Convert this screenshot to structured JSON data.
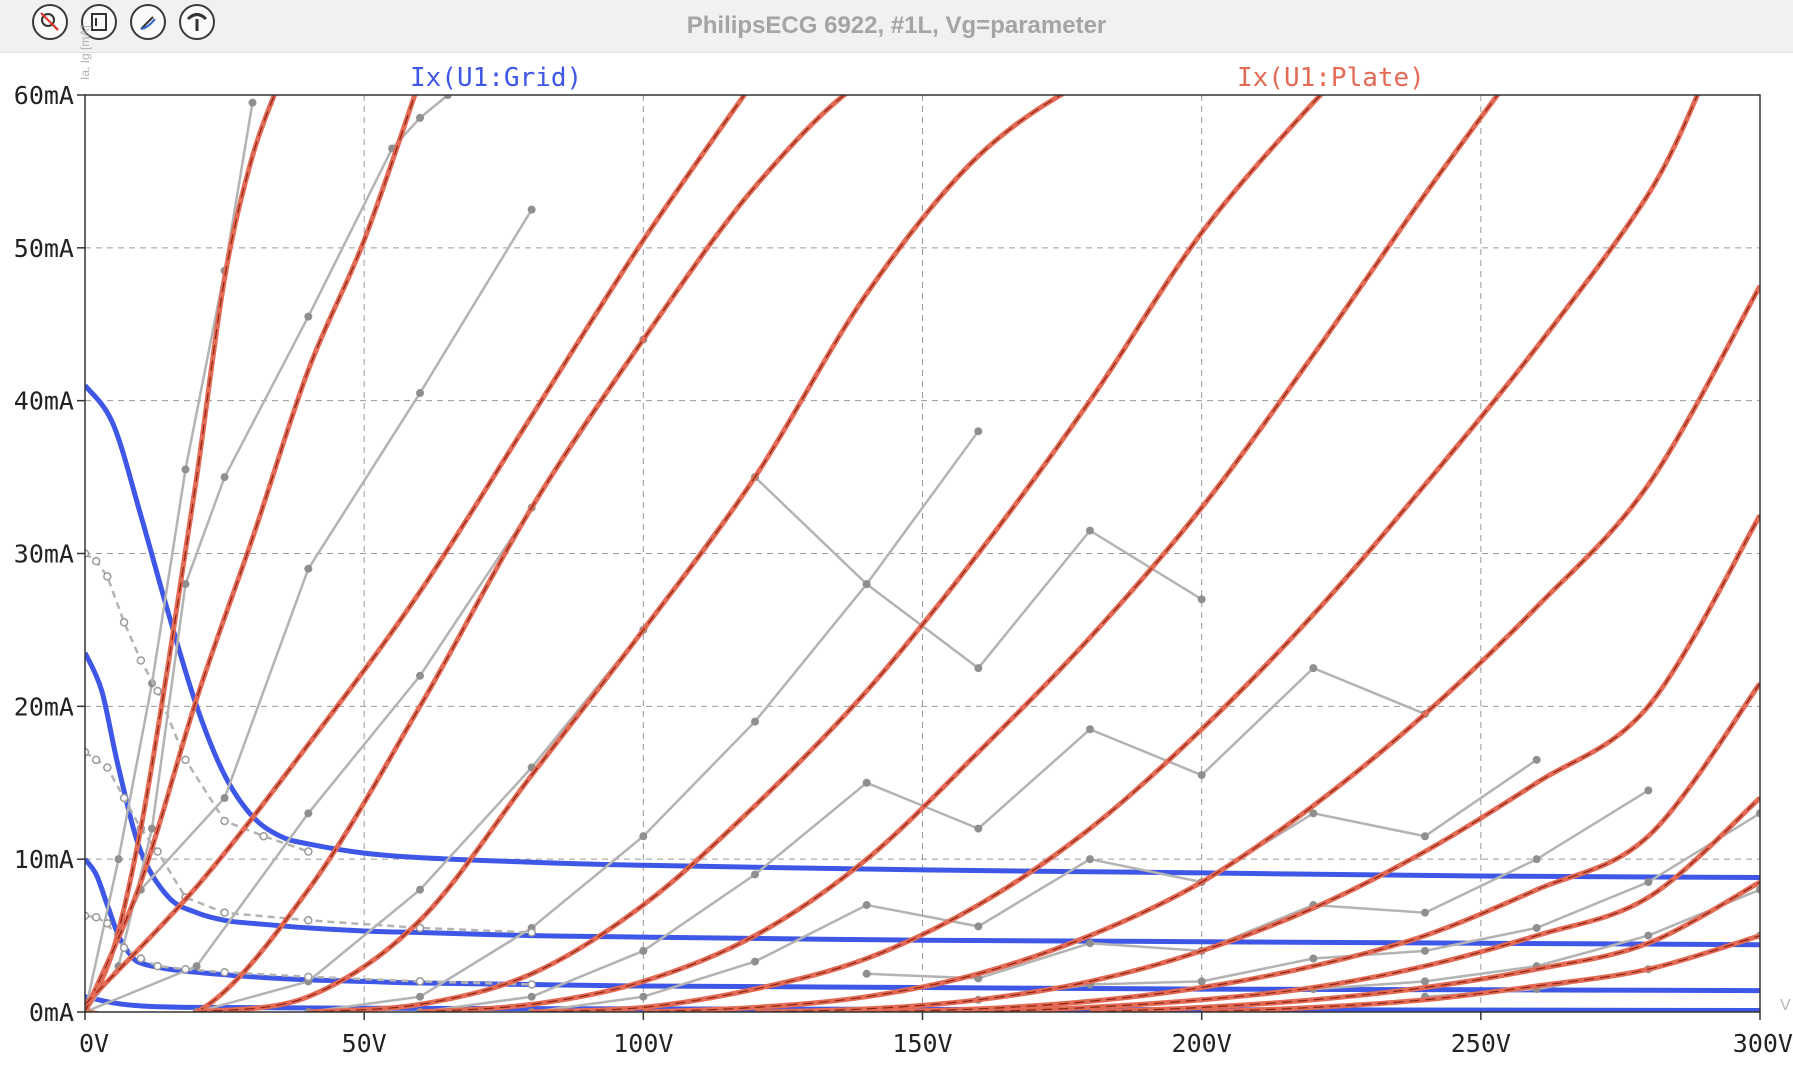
{
  "window": {
    "title": "PhilipsECG 6922, #1L, Vg=parameter",
    "side_label": "Ia, Ig [mA]",
    "toolbar": [
      {
        "name": "zoom-mode-icon"
      },
      {
        "name": "fit-to-window-icon"
      },
      {
        "name": "cursor-snap-icon"
      },
      {
        "name": "curve-tool-icon"
      }
    ]
  },
  "colors": {
    "grid_trace": "#3f57e6",
    "plate_trace": "#e36a55",
    "plate_trace_dark": "#8c2414",
    "measured": "#b3b3b3",
    "grid_lines": "#9a9a9a"
  },
  "chart_data": {
    "type": "line",
    "title": "PhilipsECG 6922, #1L, Vg=parameter",
    "xlabel": "",
    "ylabel": "",
    "xlim": [
      0,
      300
    ],
    "ylim": [
      0,
      60
    ],
    "grid": true,
    "x_ticks": [
      "0V",
      "50V",
      "100V",
      "150V",
      "200V",
      "250V",
      "300V"
    ],
    "y_ticks": [
      "0mA",
      "10mA",
      "20mA",
      "30mA",
      "40mA",
      "50mA",
      "60mA"
    ],
    "legend": [
      {
        "label": "Ix(U1:Grid)",
        "color": "#3f57e6"
      },
      {
        "label": "Ix(U1:Plate)",
        "color": "#e36a55"
      }
    ],
    "plate_curves": [
      {
        "x": [
          0,
          5,
          10,
          15,
          20,
          25,
          30,
          35
        ],
        "y": [
          0,
          4,
          12,
          23,
          35,
          48,
          56,
          61
        ]
      },
      {
        "x": [
          0,
          10,
          20,
          30,
          40,
          50,
          60
        ],
        "y": [
          0,
          8.5,
          20.5,
          31,
          42,
          50.5,
          61
        ]
      },
      {
        "x": [
          0,
          20,
          40,
          60,
          80,
          100,
          120
        ],
        "y": [
          0.5,
          8.2,
          17.5,
          27.5,
          39,
          50.5,
          61
        ]
      },
      {
        "x": [
          0,
          20,
          40,
          60,
          80,
          100,
          120,
          140,
          155
        ],
        "y": [
          0,
          0,
          8,
          20,
          33,
          44,
          54,
          61,
          61
        ]
      },
      {
        "x": [
          20,
          40,
          60,
          80,
          100,
          120,
          140,
          160,
          180,
          190
        ],
        "y": [
          0,
          1,
          6,
          15.5,
          25,
          35,
          47,
          56,
          61,
          61
        ]
      },
      {
        "x": [
          40,
          60,
          80,
          100,
          120,
          140,
          160,
          180,
          200,
          220,
          225
        ],
        "y": [
          0,
          0.5,
          2.5,
          7,
          13.5,
          21,
          30,
          40,
          51,
          59.5,
          61
        ]
      },
      {
        "x": [
          60,
          80,
          100,
          120,
          140,
          160,
          180,
          200,
          220,
          240,
          255
        ],
        "y": [
          0,
          0.5,
          2,
          5,
          10,
          17,
          24.5,
          33,
          43,
          53.5,
          61
        ]
      },
      {
        "x": [
          80,
          100,
          120,
          140,
          160,
          180,
          200,
          220,
          240,
          260,
          280,
          290
        ],
        "y": [
          0,
          0.3,
          1.5,
          3.5,
          7,
          12,
          18.5,
          26,
          34.5,
          43.5,
          53.5,
          61
        ]
      },
      {
        "x": [
          100,
          120,
          140,
          160,
          180,
          200,
          220,
          240,
          260,
          280,
          300
        ],
        "y": [
          0,
          0.3,
          1,
          2.5,
          5,
          8.5,
          13.5,
          19.5,
          26.5,
          34.5,
          47.5
        ]
      },
      {
        "x": [
          120,
          140,
          160,
          180,
          200,
          220,
          240,
          260,
          280,
          300
        ],
        "y": [
          0,
          0.2,
          0.8,
          2,
          4,
          6.8,
          10.5,
          15,
          20,
          32.5
        ]
      },
      {
        "x": [
          140,
          160,
          180,
          200,
          220,
          240,
          260,
          280,
          300
        ],
        "y": [
          0,
          0.2,
          0.7,
          1.6,
          3,
          5,
          8,
          11.5,
          21.5
        ]
      },
      {
        "x": [
          160,
          180,
          200,
          220,
          240,
          260,
          280,
          300
        ],
        "y": [
          0,
          0.3,
          0.8,
          1.6,
          3,
          5,
          7.5,
          14
        ]
      },
      {
        "x": [
          180,
          200,
          220,
          240,
          260,
          280,
          300
        ],
        "y": [
          0,
          0.3,
          0.8,
          1.6,
          2.8,
          4.5,
          8.5
        ]
      },
      {
        "x": [
          200,
          220,
          240,
          260,
          280,
          300
        ],
        "y": [
          0,
          0.3,
          0.8,
          1.7,
          2.8,
          5
        ]
      }
    ],
    "grid_curves": [
      {
        "x": [
          0,
          5,
          10,
          15,
          20,
          25,
          30,
          35,
          40,
          50,
          60,
          80,
          100,
          150,
          200,
          250,
          300
        ],
        "y": [
          41,
          38.5,
          32.5,
          26,
          20,
          15.5,
          12.8,
          11.5,
          11,
          10.4,
          10.1,
          9.8,
          9.6,
          9.3,
          9.1,
          8.9,
          8.8
        ]
      },
      {
        "x": [
          0,
          3,
          6,
          10,
          15,
          20,
          25,
          30,
          40,
          50,
          60,
          80,
          100,
          150,
          200,
          250,
          300
        ],
        "y": [
          23.5,
          21,
          16,
          10.5,
          7.5,
          6.5,
          6,
          5.8,
          5.5,
          5.3,
          5.2,
          5,
          4.9,
          4.7,
          4.6,
          4.5,
          4.4
        ]
      },
      {
        "x": [
          0,
          2,
          4,
          6,
          8,
          10,
          15,
          20,
          30,
          40,
          50,
          60,
          80,
          100,
          150,
          200,
          250,
          300
        ],
        "y": [
          10,
          9,
          7,
          5,
          3.8,
          3.2,
          2.8,
          2.6,
          2.3,
          2.1,
          2,
          1.9,
          1.8,
          1.7,
          1.6,
          1.5,
          1.45,
          1.4
        ]
      },
      {
        "x": [
          0,
          5,
          10,
          20,
          50,
          100,
          200,
          300
        ],
        "y": [
          1,
          0.6,
          0.4,
          0.3,
          0.25,
          0.2,
          0.15,
          0.1
        ]
      }
    ],
    "measured_plate": [
      {
        "x": [
          0,
          6,
          12,
          18,
          25,
          30
        ],
        "y": [
          0,
          10,
          21.5,
          35.5,
          48.5,
          59.5
        ]
      },
      {
        "x": [
          0,
          6,
          12,
          18,
          25,
          40,
          55,
          60,
          65
        ],
        "y": [
          0,
          3,
          12,
          28,
          35,
          45.5,
          56.5,
          58.5,
          60
        ]
      },
      {
        "x": [
          0,
          10,
          25,
          40,
          60,
          80
        ],
        "y": [
          0,
          8,
          14,
          29,
          40.5,
          52.5
        ]
      },
      {
        "x": [
          0,
          20,
          40,
          60,
          80,
          100
        ],
        "y": [
          0,
          3,
          13,
          22,
          33,
          44
        ]
      },
      {
        "x": [
          20,
          40,
          60,
          80,
          100,
          120,
          140,
          160
        ],
        "y": [
          0,
          2,
          8,
          16,
          25,
          35,
          28,
          38
        ]
      },
      {
        "x": [
          40,
          60,
          80,
          100,
          120,
          140,
          160,
          180,
          200
        ],
        "y": [
          0,
          1,
          5.5,
          11.5,
          19,
          28,
          22.5,
          31.5,
          27
        ]
      },
      {
        "x": [
          60,
          80,
          100,
          120,
          140,
          160,
          180,
          200,
          220,
          240
        ],
        "y": [
          0,
          1,
          4,
          9,
          15,
          12,
          18.5,
          15.5,
          22.5,
          19.5
        ]
      },
      {
        "x": [
          80,
          100,
          120,
          140,
          160,
          180,
          200,
          220,
          240,
          260
        ],
        "y": [
          0,
          1,
          3.3,
          7,
          5.6,
          10,
          8.5,
          13,
          11.5,
          16.5
        ]
      },
      {
        "x": [
          140,
          160,
          180,
          200,
          220,
          240,
          260,
          280
        ],
        "y": [
          2.5,
          2.2,
          4.5,
          4,
          7,
          6.5,
          10,
          14.5
        ]
      },
      {
        "x": [
          160,
          180,
          200,
          220,
          240,
          260,
          280,
          300
        ],
        "y": [
          0.8,
          1.8,
          2,
          3.5,
          4,
          5.5,
          8.5,
          13
        ]
      },
      {
        "x": [
          220,
          240,
          260,
          280,
          300
        ],
        "y": [
          1.5,
          2,
          3,
          5,
          8
        ]
      },
      {
        "x": [
          240,
          260,
          280,
          300
        ],
        "y": [
          1,
          1.5,
          2.8,
          5
        ]
      }
    ],
    "measured_grid": [
      {
        "x": [
          0,
          2,
          4,
          7,
          10,
          13,
          18,
          25,
          32,
          40
        ],
        "y": [
          30,
          29.5,
          28.5,
          25.5,
          23,
          21,
          16.5,
          12.5,
          11.5,
          10.5
        ]
      },
      {
        "x": [
          0,
          2,
          4,
          7,
          10,
          13,
          18,
          25,
          40,
          60,
          80
        ],
        "y": [
          17,
          16.5,
          16,
          14,
          12,
          10.5,
          7.5,
          6.5,
          6,
          5.5,
          5.2
        ]
      },
      {
        "x": [
          0,
          2,
          4,
          7,
          10,
          13,
          18,
          25,
          40,
          60,
          80
        ],
        "y": [
          6.3,
          6.2,
          5.8,
          4.2,
          3.5,
          3,
          2.8,
          2.6,
          2.3,
          2,
          1.8
        ]
      }
    ]
  }
}
